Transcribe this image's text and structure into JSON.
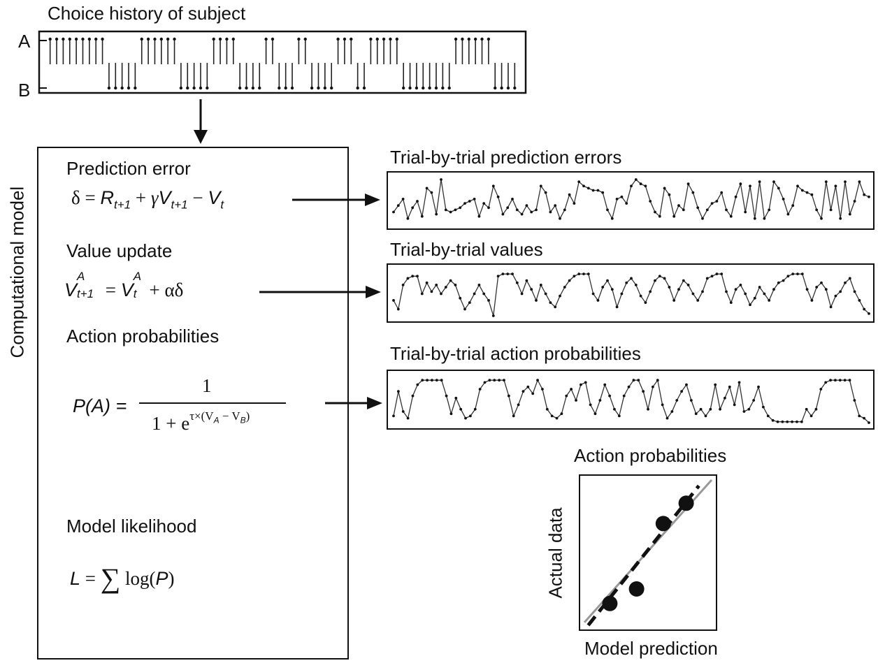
{
  "choice_history": {
    "title": "Choice history of subject",
    "label_a": "A",
    "label_b": "B",
    "choices": "AAAAAAAAABBBBBAAAAAABBBBBAAAABBBBAABBBAABBBBAAABBAAAAABBBBBBBBAAAAAABBBB"
  },
  "model": {
    "vertical_label": "Computational model",
    "sections": [
      {
        "title": "Prediction error"
      },
      {
        "title": "Value update"
      },
      {
        "title": "Action probabilities"
      },
      {
        "title": "Model likelihood"
      }
    ],
    "pred_error_eq": {
      "delta": "δ",
      "eq": "=",
      "R": "R",
      "R_sub": "t+1",
      "plus": "+",
      "gamma": "γ",
      "V": "V",
      "V_sub": "t+1",
      "minus": "−",
      "V2": "V",
      "V2_sub": "t"
    },
    "value_update_eq": {
      "V": "V",
      "V_sup": "A",
      "V_sub": "t+1",
      "eq": "=",
      "V2": "V",
      "V2_sup": "A",
      "V2_sub": "t",
      "rest": "+ αδ"
    },
    "action_prob_eq": {
      "lhs": "P(A) =",
      "numerator": "1",
      "denominator_base": "1 + e",
      "exponent": "τ×(V",
      "exp_a": "A",
      "exp_mid": " − V",
      "exp_b": "B",
      "exp_end": ")"
    },
    "likelihood_eq": {
      "L": "L",
      "eq": "=",
      "sum": "∑",
      "log": "log(",
      "P": "P",
      "close": ")"
    }
  },
  "series_panels": [
    {
      "title": "Trial-by-trial prediction errors",
      "values": [
        0.25,
        0.4,
        0.55,
        0.1,
        0.35,
        0.5,
        0.15,
        0.8,
        0.7,
        0.2,
        1.0,
        0.3,
        0.25,
        0.3,
        0.35,
        0.45,
        0.5,
        0.55,
        0.15,
        0.45,
        0.35,
        0.85,
        0.6,
        0.2,
        0.35,
        0.55,
        0.3,
        0.2,
        0.4,
        0.25,
        0.3,
        0.85,
        0.7,
        0.25,
        0.4,
        0.1,
        0.3,
        0.65,
        0.45,
        0.95,
        0.85,
        0.8,
        0.75,
        0.75,
        0.7,
        0.3,
        0.1,
        0.55,
        0.6,
        0.45,
        0.85,
        1.0,
        0.9,
        0.85,
        0.5,
        0.25,
        0.15,
        0.8,
        0.65,
        0.15,
        0.4,
        0.3,
        0.9,
        0.7,
        0.35,
        0.1,
        0.3,
        0.45,
        0.5,
        0.7,
        0.3,
        0.15,
        0.6,
        0.9,
        0.25,
        0.85,
        0.1,
        0.95,
        0.1,
        0.3,
        0.95,
        0.8,
        0.55,
        0.2,
        0.4,
        0.85,
        0.75,
        0.7,
        0.65,
        0.3,
        0.1,
        0.95,
        0.3,
        0.85,
        0.1,
        0.95,
        0.2,
        0.5,
        0.95,
        0.65,
        0.6
      ]
    },
    {
      "title": "Trial-by-trial values",
      "values": [
        0.35,
        0.15,
        0.7,
        0.85,
        0.9,
        0.9,
        0.5,
        0.75,
        0.55,
        0.7,
        0.5,
        0.65,
        0.8,
        0.7,
        0.4,
        0.15,
        0.3,
        0.5,
        0.7,
        0.5,
        0.35,
        0.0,
        0.9,
        0.95,
        0.95,
        0.95,
        0.75,
        0.5,
        0.8,
        0.6,
        0.35,
        0.7,
        0.5,
        0.3,
        0.2,
        0.45,
        0.65,
        0.8,
        0.9,
        0.95,
        0.95,
        0.95,
        0.5,
        0.35,
        0.65,
        0.8,
        0.6,
        0.2,
        0.5,
        0.75,
        0.85,
        0.7,
        0.45,
        0.3,
        0.55,
        0.8,
        0.9,
        0.85,
        0.65,
        0.35,
        0.6,
        0.8,
        0.7,
        0.5,
        0.35,
        0.55,
        0.85,
        0.9,
        0.95,
        0.95,
        0.55,
        0.3,
        0.6,
        0.7,
        0.5,
        0.25,
        0.4,
        0.65,
        0.5,
        0.35,
        0.6,
        0.75,
        0.8,
        0.9,
        0.95,
        0.95,
        0.95,
        0.6,
        0.35,
        0.65,
        0.75,
        0.6,
        0.2,
        0.45,
        0.55,
        0.75,
        0.85,
        0.55,
        0.35,
        0.15,
        0.05
      ]
    },
    {
      "title": "Trial-by-trial action probabilities",
      "values": [
        0.15,
        0.7,
        0.25,
        0.1,
        0.6,
        0.85,
        0.95,
        0.95,
        0.95,
        0.95,
        0.95,
        0.6,
        0.2,
        0.55,
        0.3,
        0.1,
        0.15,
        0.3,
        0.75,
        0.9,
        0.95,
        0.95,
        0.95,
        0.95,
        0.6,
        0.15,
        0.4,
        0.7,
        0.8,
        0.65,
        0.95,
        0.75,
        0.3,
        0.15,
        0.1,
        0.2,
        0.6,
        0.75,
        0.5,
        0.85,
        0.9,
        0.4,
        0.2,
        0.5,
        0.85,
        0.6,
        0.3,
        0.15,
        0.6,
        0.8,
        0.95,
        0.95,
        0.7,
        0.3,
        0.8,
        0.95,
        0.4,
        0.1,
        0.25,
        0.5,
        0.7,
        0.85,
        0.5,
        0.2,
        0.3,
        0.15,
        0.3,
        0.85,
        0.3,
        0.55,
        0.8,
        0.4,
        0.9,
        0.25,
        0.3,
        0.5,
        0.8,
        0.35,
        0.15,
        0.05,
        0.02,
        0.02,
        0.02,
        0.02,
        0.02,
        0.02,
        0.3,
        0.15,
        0.3,
        0.75,
        0.9,
        0.95,
        0.95,
        0.95,
        0.95,
        0.95,
        0.5,
        0.15,
        0.1,
        0.0
      ]
    }
  ],
  "scatter": {
    "title": "Action probabilities",
    "xlabel": "Model prediction",
    "ylabel": "Actual data",
    "points": [
      [
        0.2,
        0.15
      ],
      [
        0.41,
        0.25
      ],
      [
        0.62,
        0.7
      ],
      [
        0.8,
        0.84
      ]
    ]
  }
}
